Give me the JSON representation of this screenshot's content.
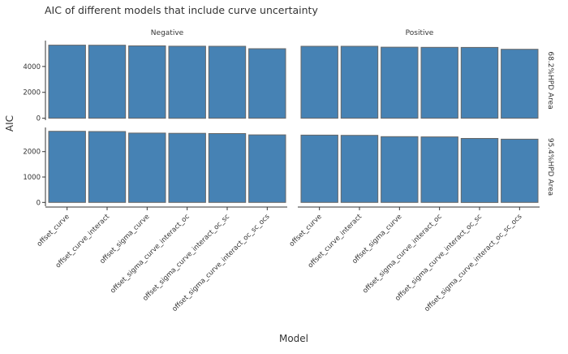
{
  "chart_data": {
    "type": "bar",
    "title": "AIC of different models that include curve uncertainty",
    "xlabel": "Model",
    "ylabel": "AIC",
    "categories": [
      "offset_curve",
      "offset_curve_interact",
      "offset_sigma_curve",
      "offset_sigma_curve_interact_oc",
      "offset_sigma_curve_interact_oc_sc",
      "offset_sigma_curve_interact_oc_sc_ocs"
    ],
    "facet_columns": [
      "Negative",
      "Positive"
    ],
    "facet_rows": [
      "68.2%HPD Area",
      "95.4%HPD Area"
    ],
    "panels": [
      {
        "row": "68.2%HPD Area",
        "column": "Negative",
        "values": [
          5650,
          5640,
          5590,
          5570,
          5560,
          5370
        ]
      },
      {
        "row": "68.2%HPD Area",
        "column": "Positive",
        "values": [
          5560,
          5560,
          5490,
          5480,
          5470,
          5330
        ]
      },
      {
        "row": "95.4%HPD Area",
        "column": "Negative",
        "values": [
          2800,
          2790,
          2730,
          2720,
          2710,
          2660
        ]
      },
      {
        "row": "95.4%HPD Area",
        "column": "Positive",
        "values": [
          2650,
          2640,
          2590,
          2580,
          2520,
          2490
        ]
      }
    ],
    "row_axes": [
      {
        "ylim": [
          -150,
          6000
        ],
        "ticks": [
          0,
          2000,
          4000
        ]
      },
      {
        "ylim": [
          -150,
          2950
        ],
        "ticks": [
          0,
          1000,
          2000
        ]
      }
    ],
    "bar_color": "#4682B4",
    "bar_outline": "#666666",
    "grid": false,
    "legend": "none"
  }
}
